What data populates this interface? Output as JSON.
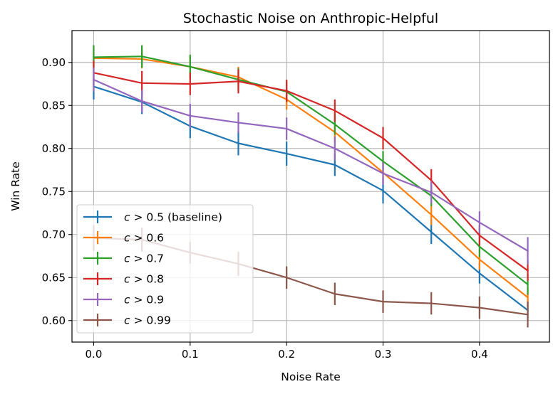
{
  "chart_data": {
    "type": "line",
    "title": "Stochastic Noise on Anthropic-Helpful",
    "xlabel": "Noise Rate",
    "ylabel": "Win Rate",
    "xlim": [
      -0.0225,
      0.4725
    ],
    "ylim": [
      0.575,
      0.937
    ],
    "xticks": [
      0.0,
      0.1,
      0.2,
      0.3,
      0.4
    ],
    "xtick_labels": [
      "0.0",
      "0.1",
      "0.2",
      "0.3",
      "0.4"
    ],
    "yticks": [
      0.6,
      0.65,
      0.7,
      0.75,
      0.8,
      0.85,
      0.9
    ],
    "ytick_labels": [
      "0.60",
      "0.65",
      "0.70",
      "0.75",
      "0.80",
      "0.85",
      "0.90"
    ],
    "grid": true,
    "error_bars": true,
    "legend_position": "lower-left",
    "x": [
      0.0,
      0.05,
      0.1,
      0.15,
      0.2,
      0.25,
      0.3,
      0.35,
      0.4,
      0.45
    ],
    "series": [
      {
        "name": "c > 0.5 (baseline)",
        "name_parts": [
          "c",
          " > 0.5 (baseline)"
        ],
        "color": "#1f77b4",
        "values": [
          0.872,
          0.854,
          0.826,
          0.806,
          0.794,
          0.781,
          0.751,
          0.703,
          0.655,
          0.612
        ],
        "errors": [
          0.015,
          0.014,
          0.014,
          0.014,
          0.014,
          0.013,
          0.015,
          0.014,
          0.012,
          0.012
        ]
      },
      {
        "name": "c > 0.6",
        "name_parts": [
          "c",
          " > 0.6"
        ],
        "color": "#ff7f0e",
        "values": [
          0.905,
          0.904,
          0.895,
          0.883,
          0.857,
          0.819,
          0.772,
          0.723,
          0.671,
          0.627
        ],
        "errors": [
          0.01,
          0.011,
          0.012,
          0.012,
          0.012,
          0.012,
          0.012,
          0.012,
          0.012,
          0.012
        ]
      },
      {
        "name": "c > 0.7",
        "name_parts": [
          "c",
          " > 0.7"
        ],
        "color": "#2ca02c",
        "values": [
          0.906,
          0.907,
          0.895,
          0.88,
          0.866,
          0.828,
          0.785,
          0.745,
          0.686,
          0.642
        ],
        "errors": [
          0.014,
          0.013,
          0.014,
          0.013,
          0.012,
          0.012,
          0.012,
          0.012,
          0.012,
          0.012
        ]
      },
      {
        "name": "c > 0.8",
        "name_parts": [
          "c",
          " > 0.8"
        ],
        "color": "#d62728",
        "values": [
          0.888,
          0.876,
          0.875,
          0.878,
          0.867,
          0.844,
          0.812,
          0.763,
          0.699,
          0.658
        ],
        "errors": [
          0.014,
          0.014,
          0.013,
          0.014,
          0.013,
          0.013,
          0.013,
          0.013,
          0.012,
          0.012
        ]
      },
      {
        "name": "c > 0.9",
        "name_parts": [
          "c",
          " > 0.9"
        ],
        "color": "#9467bd",
        "values": [
          0.88,
          0.855,
          0.838,
          0.83,
          0.823,
          0.8,
          0.771,
          0.749,
          0.714,
          0.681
        ],
        "errors": [
          0.014,
          0.013,
          0.014,
          0.012,
          0.013,
          0.014,
          0.013,
          0.013,
          0.013,
          0.016
        ]
      },
      {
        "name": "c > 0.99",
        "name_parts": [
          "c",
          " > 0.99"
        ],
        "color": "#8c564b",
        "values": [
          0.696,
          0.694,
          0.679,
          0.666,
          0.65,
          0.631,
          0.622,
          0.62,
          0.615,
          0.607
        ],
        "errors": [
          0.015,
          0.014,
          0.013,
          0.014,
          0.013,
          0.013,
          0.013,
          0.013,
          0.013,
          0.015
        ]
      }
    ]
  }
}
